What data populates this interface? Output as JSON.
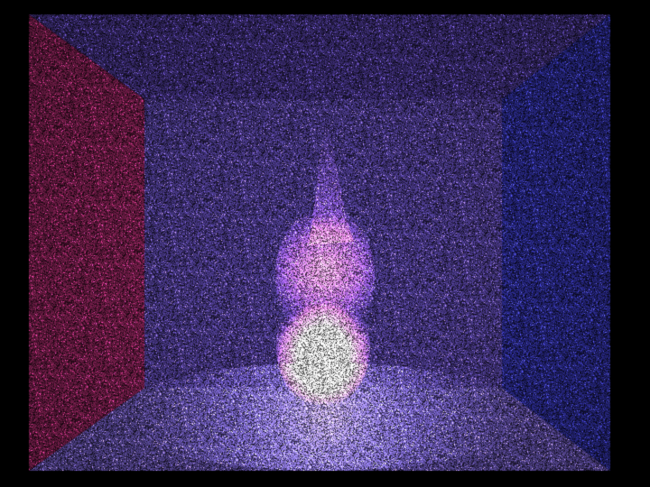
{
  "scene": {
    "type": "cornell-box-volumetric-render",
    "subject": "glowing-flame-plume",
    "colors": {
      "background": "#000000",
      "left_wall": "#7a1f4e",
      "right_wall": "#2a2a8a",
      "back_wall": "#4a3a8a",
      "ceiling": "#3e2f78",
      "floor": "#5a4a9a",
      "flame_core": "#ffe6ff",
      "flame_mid": "#e070e0",
      "flame_outer": "#8a4ad0",
      "floor_glow": "#b9a6ff"
    },
    "noise": "heavy-monte-carlo-speckle"
  }
}
